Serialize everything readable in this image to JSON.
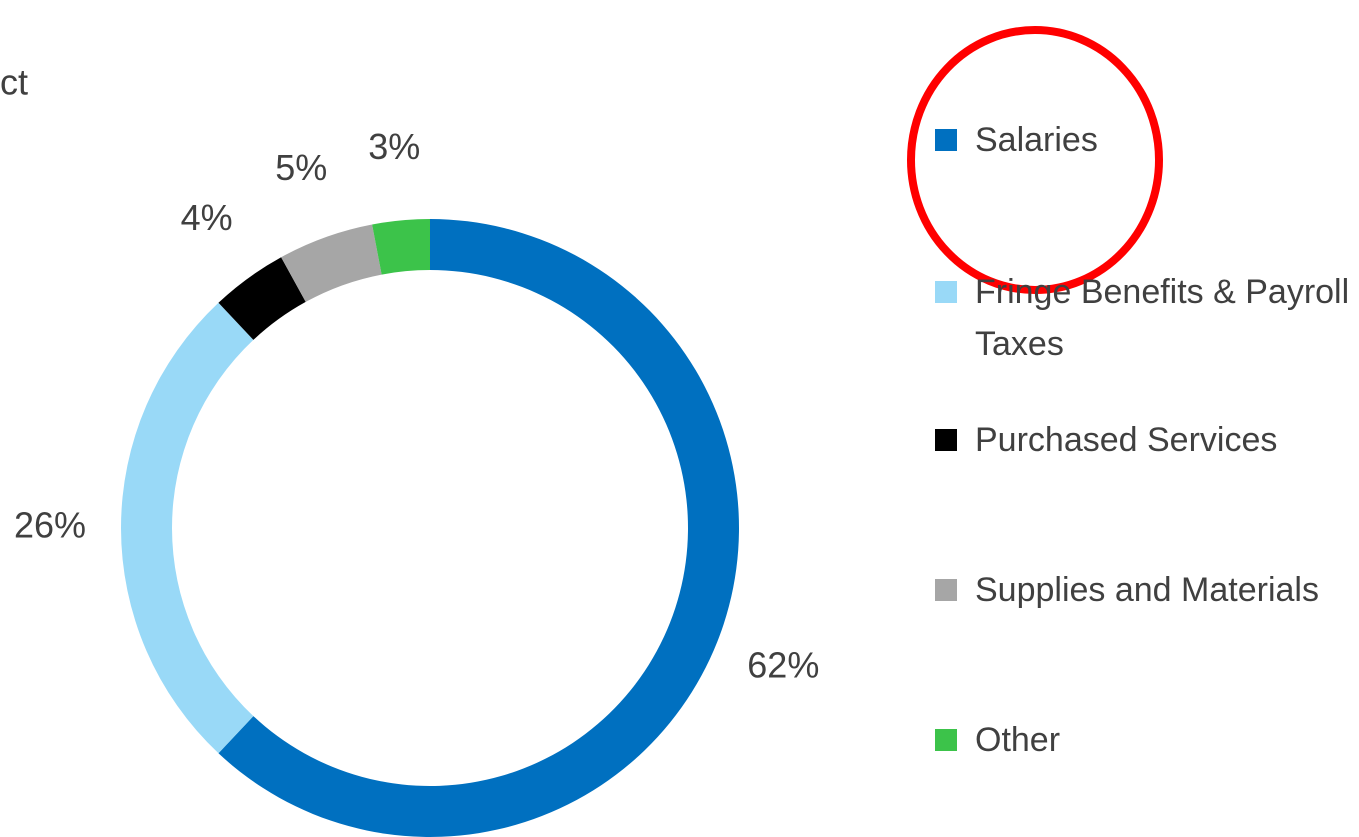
{
  "chart_data": {
    "type": "donut",
    "title": "ct",
    "categories": [
      "Salaries",
      "Fringe Benefits & Payroll Taxes",
      "Purchased Services",
      "Supplies and Materials",
      "Other"
    ],
    "values": [
      62,
      26,
      4,
      5,
      3
    ],
    "value_labels": [
      "62%",
      "26%",
      "4%",
      "5%",
      "3%"
    ],
    "colors": [
      "#0070c0",
      "#99d9f7",
      "#000000",
      "#a6a6a6",
      "#3cc34a"
    ],
    "legend": "right"
  }
}
